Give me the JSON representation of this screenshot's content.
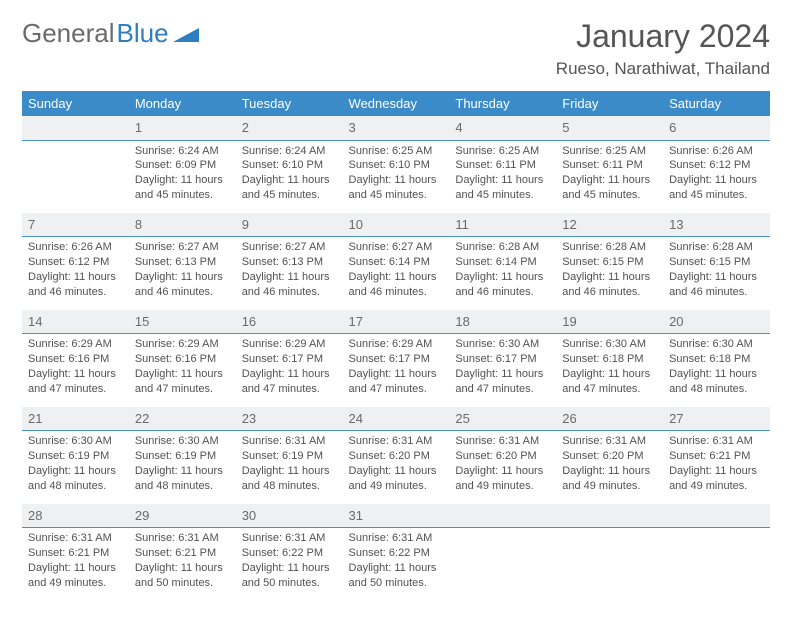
{
  "logo": {
    "text_gray": "General",
    "text_blue": "Blue"
  },
  "title": "January 2024",
  "location": "Rueso, Narathiwat, Thailand",
  "colors": {
    "header_bg": "#3b8bc9",
    "header_text": "#ffffff",
    "daynum_bg": "#eef0f2",
    "daynum_border": "#4a90c8",
    "body_text": "#525252",
    "title_text": "#555555"
  },
  "weekdays": [
    "Sunday",
    "Monday",
    "Tuesday",
    "Wednesday",
    "Thursday",
    "Friday",
    "Saturday"
  ],
  "weeks": [
    {
      "nums": [
        "",
        "1",
        "2",
        "3",
        "4",
        "5",
        "6"
      ],
      "cells": [
        null,
        {
          "sunrise": "Sunrise: 6:24 AM",
          "sunset": "Sunset: 6:09 PM",
          "daylight": "Daylight: 11 hours and 45 minutes."
        },
        {
          "sunrise": "Sunrise: 6:24 AM",
          "sunset": "Sunset: 6:10 PM",
          "daylight": "Daylight: 11 hours and 45 minutes."
        },
        {
          "sunrise": "Sunrise: 6:25 AM",
          "sunset": "Sunset: 6:10 PM",
          "daylight": "Daylight: 11 hours and 45 minutes."
        },
        {
          "sunrise": "Sunrise: 6:25 AM",
          "sunset": "Sunset: 6:11 PM",
          "daylight": "Daylight: 11 hours and 45 minutes."
        },
        {
          "sunrise": "Sunrise: 6:25 AM",
          "sunset": "Sunset: 6:11 PM",
          "daylight": "Daylight: 11 hours and 45 minutes."
        },
        {
          "sunrise": "Sunrise: 6:26 AM",
          "sunset": "Sunset: 6:12 PM",
          "daylight": "Daylight: 11 hours and 45 minutes."
        }
      ]
    },
    {
      "nums": [
        "7",
        "8",
        "9",
        "10",
        "11",
        "12",
        "13"
      ],
      "cells": [
        {
          "sunrise": "Sunrise: 6:26 AM",
          "sunset": "Sunset: 6:12 PM",
          "daylight": "Daylight: 11 hours and 46 minutes."
        },
        {
          "sunrise": "Sunrise: 6:27 AM",
          "sunset": "Sunset: 6:13 PM",
          "daylight": "Daylight: 11 hours and 46 minutes."
        },
        {
          "sunrise": "Sunrise: 6:27 AM",
          "sunset": "Sunset: 6:13 PM",
          "daylight": "Daylight: 11 hours and 46 minutes."
        },
        {
          "sunrise": "Sunrise: 6:27 AM",
          "sunset": "Sunset: 6:14 PM",
          "daylight": "Daylight: 11 hours and 46 minutes."
        },
        {
          "sunrise": "Sunrise: 6:28 AM",
          "sunset": "Sunset: 6:14 PM",
          "daylight": "Daylight: 11 hours and 46 minutes."
        },
        {
          "sunrise": "Sunrise: 6:28 AM",
          "sunset": "Sunset: 6:15 PM",
          "daylight": "Daylight: 11 hours and 46 minutes."
        },
        {
          "sunrise": "Sunrise: 6:28 AM",
          "sunset": "Sunset: 6:15 PM",
          "daylight": "Daylight: 11 hours and 46 minutes."
        }
      ]
    },
    {
      "nums": [
        "14",
        "15",
        "16",
        "17",
        "18",
        "19",
        "20"
      ],
      "cells": [
        {
          "sunrise": "Sunrise: 6:29 AM",
          "sunset": "Sunset: 6:16 PM",
          "daylight": "Daylight: 11 hours and 47 minutes."
        },
        {
          "sunrise": "Sunrise: 6:29 AM",
          "sunset": "Sunset: 6:16 PM",
          "daylight": "Daylight: 11 hours and 47 minutes."
        },
        {
          "sunrise": "Sunrise: 6:29 AM",
          "sunset": "Sunset: 6:17 PM",
          "daylight": "Daylight: 11 hours and 47 minutes."
        },
        {
          "sunrise": "Sunrise: 6:29 AM",
          "sunset": "Sunset: 6:17 PM",
          "daylight": "Daylight: 11 hours and 47 minutes."
        },
        {
          "sunrise": "Sunrise: 6:30 AM",
          "sunset": "Sunset: 6:17 PM",
          "daylight": "Daylight: 11 hours and 47 minutes."
        },
        {
          "sunrise": "Sunrise: 6:30 AM",
          "sunset": "Sunset: 6:18 PM",
          "daylight": "Daylight: 11 hours and 47 minutes."
        },
        {
          "sunrise": "Sunrise: 6:30 AM",
          "sunset": "Sunset: 6:18 PM",
          "daylight": "Daylight: 11 hours and 48 minutes."
        }
      ]
    },
    {
      "nums": [
        "21",
        "22",
        "23",
        "24",
        "25",
        "26",
        "27"
      ],
      "cells": [
        {
          "sunrise": "Sunrise: 6:30 AM",
          "sunset": "Sunset: 6:19 PM",
          "daylight": "Daylight: 11 hours and 48 minutes."
        },
        {
          "sunrise": "Sunrise: 6:30 AM",
          "sunset": "Sunset: 6:19 PM",
          "daylight": "Daylight: 11 hours and 48 minutes."
        },
        {
          "sunrise": "Sunrise: 6:31 AM",
          "sunset": "Sunset: 6:19 PM",
          "daylight": "Daylight: 11 hours and 48 minutes."
        },
        {
          "sunrise": "Sunrise: 6:31 AM",
          "sunset": "Sunset: 6:20 PM",
          "daylight": "Daylight: 11 hours and 49 minutes."
        },
        {
          "sunrise": "Sunrise: 6:31 AM",
          "sunset": "Sunset: 6:20 PM",
          "daylight": "Daylight: 11 hours and 49 minutes."
        },
        {
          "sunrise": "Sunrise: 6:31 AM",
          "sunset": "Sunset: 6:20 PM",
          "daylight": "Daylight: 11 hours and 49 minutes."
        },
        {
          "sunrise": "Sunrise: 6:31 AM",
          "sunset": "Sunset: 6:21 PM",
          "daylight": "Daylight: 11 hours and 49 minutes."
        }
      ]
    },
    {
      "nums": [
        "28",
        "29",
        "30",
        "31",
        "",
        "",
        ""
      ],
      "cells": [
        {
          "sunrise": "Sunrise: 6:31 AM",
          "sunset": "Sunset: 6:21 PM",
          "daylight": "Daylight: 11 hours and 49 minutes."
        },
        {
          "sunrise": "Sunrise: 6:31 AM",
          "sunset": "Sunset: 6:21 PM",
          "daylight": "Daylight: 11 hours and 50 minutes."
        },
        {
          "sunrise": "Sunrise: 6:31 AM",
          "sunset": "Sunset: 6:22 PM",
          "daylight": "Daylight: 11 hours and 50 minutes."
        },
        {
          "sunrise": "Sunrise: 6:31 AM",
          "sunset": "Sunset: 6:22 PM",
          "daylight": "Daylight: 11 hours and 50 minutes."
        },
        null,
        null,
        null
      ]
    }
  ]
}
